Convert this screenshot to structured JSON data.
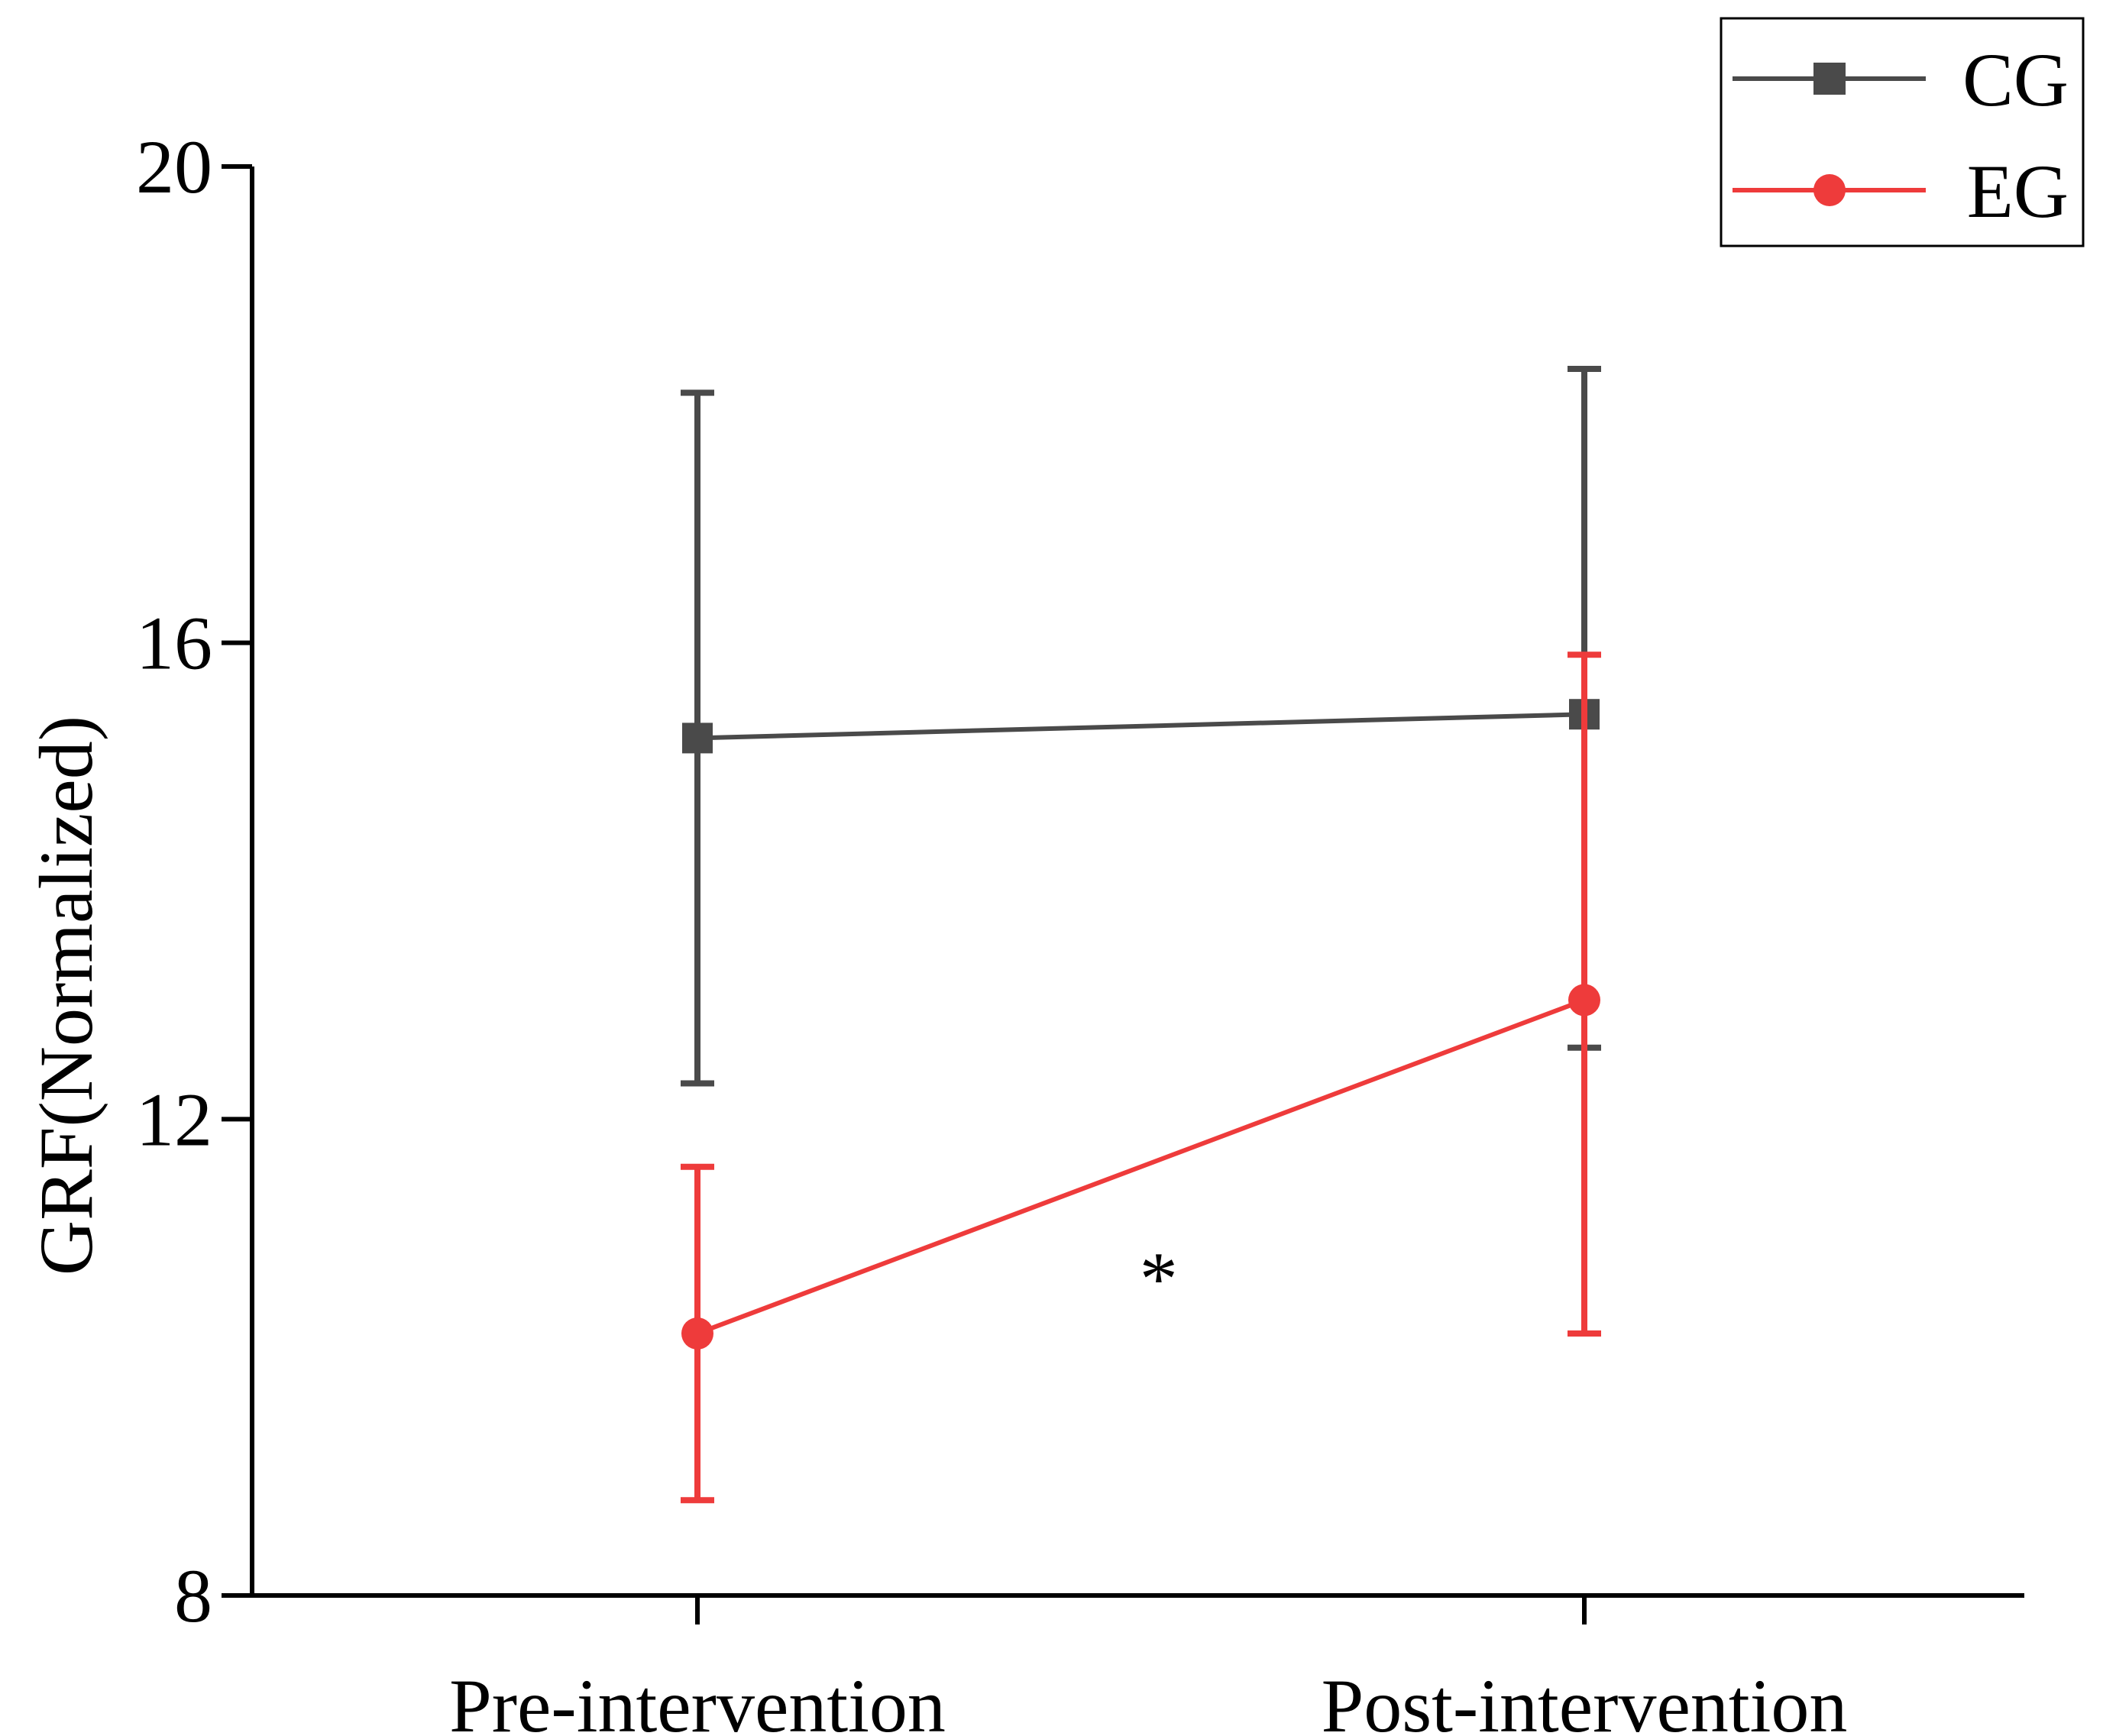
{
  "chart_data": {
    "type": "line",
    "title": "",
    "xlabel": "",
    "ylabel": "GRF(Normalized)",
    "categories": [
      "Pre-intervention",
      "Post-intervention"
    ],
    "ylim": [
      8,
      20
    ],
    "yticks": [
      8,
      12,
      16,
      20
    ],
    "ytick_labels": [
      "8",
      "12",
      "16",
      "20"
    ],
    "grid": false,
    "legend_position": "top-right",
    "series": [
      {
        "name": "CG",
        "color": "#4a4a4a",
        "marker": "square",
        "values": [
          15.2,
          15.4
        ],
        "error_upper": [
          18.1,
          18.3
        ],
        "error_lower": [
          12.3,
          12.6
        ]
      },
      {
        "name": "EG",
        "color": "#ee3b3b",
        "marker": "circle",
        "values": [
          10.2,
          13.0
        ],
        "error_upper": [
          11.6,
          15.9
        ],
        "error_lower": [
          8.8,
          10.2
        ]
      }
    ],
    "annotations": [
      {
        "text": "*",
        "x": 1.52,
        "y": 10.8
      }
    ]
  }
}
